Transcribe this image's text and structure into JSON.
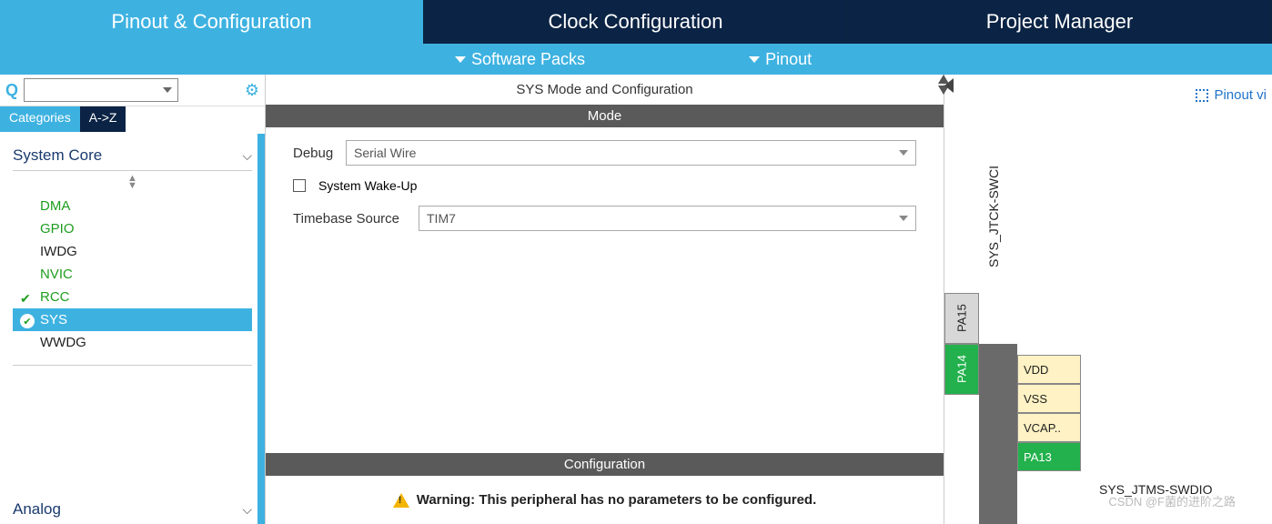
{
  "colors": {
    "accent": "#3db2e1",
    "dark_tab": "#0b2344",
    "section_bar": "#5a5a5a",
    "pin_green": "#22b14c",
    "pin_yellow": "#fff2c4",
    "pin_gray": "#d7d7d7",
    "warn": "#f4b400",
    "link": "#1e73c9"
  },
  "top_tabs": {
    "pinout": "Pinout & Configuration",
    "clock": "Clock Configuration",
    "project": "Project Manager"
  },
  "sub_menu": {
    "software_packs": "Software Packs",
    "pinout": "Pinout"
  },
  "left": {
    "categories_tab": "Categories",
    "az_tab": "A->Z",
    "section_system_core": "System Core",
    "section_analog": "Analog",
    "items": {
      "dma": "DMA",
      "gpio": "GPIO",
      "iwdg": "IWDG",
      "nvic": "NVIC",
      "rcc": "RCC",
      "sys": "SYS",
      "wwdg": "WWDG"
    }
  },
  "center": {
    "title": "SYS Mode and Configuration",
    "mode_header": "Mode",
    "debug_label": "Debug",
    "debug_value": "Serial Wire",
    "wakeup_label": "System Wake-Up",
    "timebase_label": "Timebase Source",
    "timebase_value": "TIM7",
    "config_header": "Configuration",
    "warning": "Warning: This peripheral has no parameters to be configured."
  },
  "right": {
    "pinout_view": "Pinout vi",
    "jtck_label": "SYS_JTCK-SWCI",
    "jtms_label": "SYS_JTMS-SWDIO",
    "pins_vert": {
      "pa15": "PA15",
      "pa14": "PA14"
    },
    "pins_horiz": {
      "vdd": "VDD",
      "vss": "VSS",
      "vcap": "VCAP..",
      "pa13": "PA13"
    },
    "watermark": "CSDN @F菌的进阶之路"
  }
}
